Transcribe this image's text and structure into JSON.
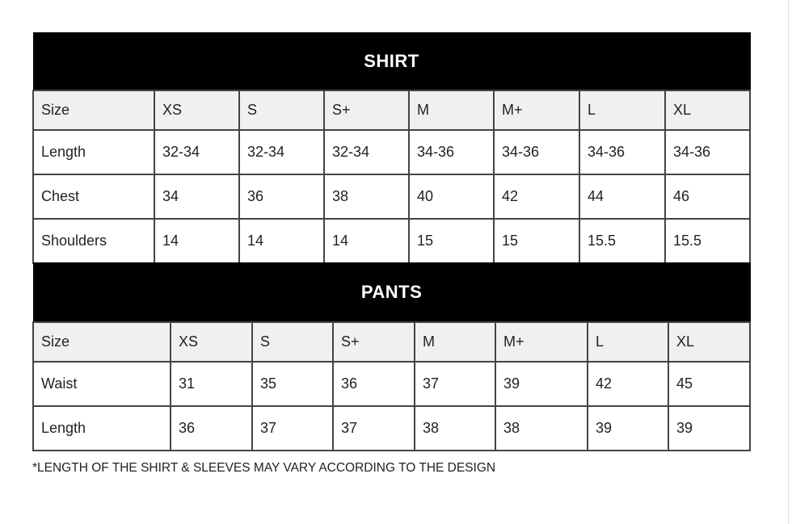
{
  "shirt": {
    "title": "SHIRT",
    "rows": [
      {
        "label": "Size",
        "values": [
          "XS",
          "S",
          "S+",
          "M",
          "M+",
          "L",
          "XL"
        ]
      },
      {
        "label": "Length",
        "values": [
          "32-34",
          "32-34",
          "32-34",
          "34-36",
          "34-36",
          "34-36",
          "34-36"
        ]
      },
      {
        "label": "Chest",
        "values": [
          "34",
          "36",
          "38",
          "40",
          "42",
          "44",
          "46"
        ]
      },
      {
        "label": "Shoulders",
        "values": [
          "14",
          "14",
          "14",
          "15",
          "15",
          "15.5",
          "15.5"
        ]
      }
    ]
  },
  "pants": {
    "title": "PANTS",
    "rows": [
      {
        "label": "Size",
        "values": [
          "XS",
          "S",
          "S+",
          "M",
          "M+",
          "L",
          "XL"
        ]
      },
      {
        "label": "Waist",
        "values": [
          "31",
          "35",
          "36",
          "37",
          "39",
          "42",
          "45"
        ]
      },
      {
        "label": "Length",
        "values": [
          "36",
          "37",
          "37",
          "38",
          "38",
          "39",
          "39"
        ]
      }
    ]
  },
  "footnote": "*LENGTH OF THE SHIRT & SLEEVES MAY VARY ACCORDING TO THE DESIGN"
}
